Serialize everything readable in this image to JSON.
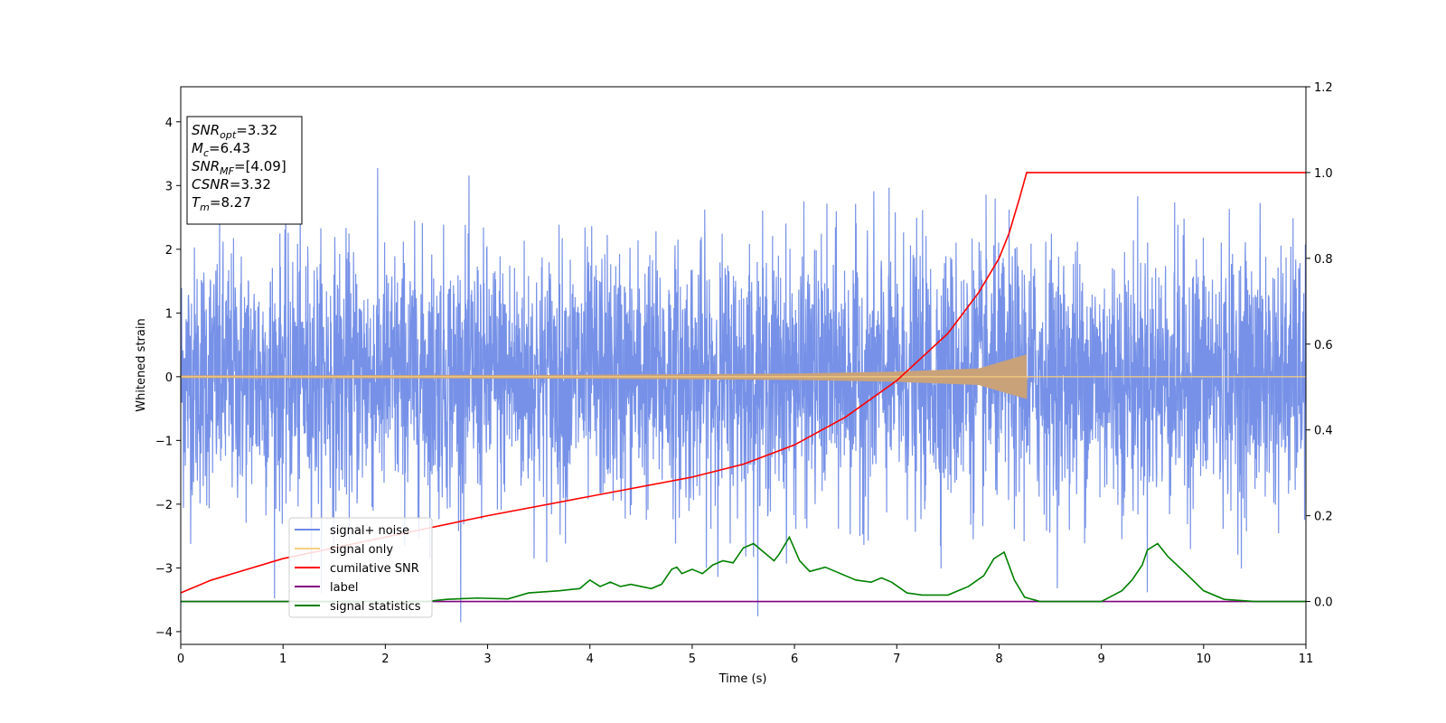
{
  "chart_data": {
    "type": "line",
    "xlabel": "Time (s)",
    "ylabel": "Whitened strain",
    "xlim": [
      0,
      11
    ],
    "ylim_left": [
      -4.2,
      4.55
    ],
    "ylim_right": [
      -0.1,
      1.2
    ],
    "x_ticks": [
      0,
      1,
      2,
      3,
      4,
      5,
      6,
      7,
      8,
      9,
      10,
      11
    ],
    "y_ticks_left": [
      4,
      3,
      2,
      1,
      0,
      -1,
      -2,
      -3,
      -4
    ],
    "y_ticks_left_labels": [
      "4",
      "3",
      "2",
      "1",
      "0",
      "−1",
      "−2",
      "−3",
      "−4"
    ],
    "y_ticks_right": [
      1.2,
      1.0,
      0.8,
      0.6,
      0.4,
      0.2,
      0.0
    ],
    "y_ticks_right_labels": [
      "1.2",
      "1.0",
      "0.8",
      "0.6",
      "0.4",
      "0.2",
      "0.0"
    ],
    "info_box": {
      "lines": [
        {
          "var": "SNR",
          "sub": "opt",
          "value": "=3.32"
        },
        {
          "var": "M",
          "sub": "c",
          "value": "=6.43"
        },
        {
          "var": "SNR",
          "sub": "MF",
          "value": "=[4.09]"
        },
        {
          "var": "CSNR",
          "sub": "",
          "value": "=3.32"
        },
        {
          "var": "T",
          "sub": "m",
          "value": "=8.27"
        }
      ]
    },
    "legend": {
      "position": "lower-left",
      "entries": [
        {
          "label": "signal+ noise",
          "color": "#6f8be6"
        },
        {
          "label": "signal only",
          "color": "#f5cf80"
        },
        {
          "label": "cumilative SNR",
          "color": "#ff0000"
        },
        {
          "label": "label",
          "color": "#800080"
        },
        {
          "label": "signal statistics",
          "color": "#008000"
        }
      ]
    },
    "series": [
      {
        "name": "signal+ noise",
        "axis": "left",
        "color": "#6f8be6",
        "kind": "noise",
        "band": [
          -2.0,
          2.0
        ],
        "peak_range": [
          -3.85,
          4.13
        ],
        "x": [
          0,
          11
        ]
      },
      {
        "name": "signal only",
        "axis": "left",
        "color": "#c9a27a",
        "kind": "chirp",
        "merger_time": 8.27,
        "envelope": [
          {
            "x": 0,
            "y": 0.02
          },
          {
            "x": 4,
            "y": 0.03
          },
          {
            "x": 6,
            "y": 0.05
          },
          {
            "x": 7,
            "y": 0.08
          },
          {
            "x": 7.8,
            "y": 0.13
          },
          {
            "x": 8.27,
            "y": 0.35
          }
        ]
      },
      {
        "name": "cumilative SNR",
        "axis": "right",
        "color": "#ff0000",
        "x": [
          0,
          0.3,
          1,
          2,
          3,
          4,
          5,
          5.5,
          6,
          6.5,
          7,
          7.5,
          7.8,
          8.0,
          8.1,
          8.2,
          8.27,
          11
        ],
        "y": [
          0.02,
          0.05,
          0.1,
          0.15,
          0.2,
          0.245,
          0.29,
          0.32,
          0.365,
          0.43,
          0.515,
          0.625,
          0.72,
          0.8,
          0.86,
          0.94,
          1.0,
          1.0
        ]
      },
      {
        "name": "label",
        "axis": "right",
        "color": "#800080",
        "x": [
          0,
          11
        ],
        "y": [
          0.0,
          0.0
        ]
      },
      {
        "name": "signal statistics",
        "axis": "right",
        "color": "#008000",
        "x": [
          0,
          2.4,
          2.6,
          2.9,
          3.2,
          3.4,
          3.7,
          3.9,
          4.0,
          4.1,
          4.2,
          4.3,
          4.4,
          4.5,
          4.6,
          4.7,
          4.8,
          4.85,
          4.9,
          5.0,
          5.1,
          5.2,
          5.3,
          5.4,
          5.5,
          5.6,
          5.7,
          5.8,
          5.85,
          5.95,
          6.05,
          6.15,
          6.3,
          6.4,
          6.5,
          6.6,
          6.75,
          6.85,
          6.95,
          7.1,
          7.25,
          7.5,
          7.7,
          7.85,
          7.95,
          8.05,
          8.15,
          8.25,
          8.4,
          8.7,
          9.0,
          9.2,
          9.3,
          9.4,
          9.45,
          9.55,
          9.65,
          9.85,
          10.0,
          10.2,
          10.5,
          11
        ],
        "y": [
          0.0,
          0.0,
          0.005,
          0.008,
          0.006,
          0.02,
          0.025,
          0.03,
          0.05,
          0.035,
          0.045,
          0.035,
          0.04,
          0.035,
          0.03,
          0.04,
          0.075,
          0.08,
          0.065,
          0.075,
          0.065,
          0.085,
          0.095,
          0.09,
          0.125,
          0.135,
          0.115,
          0.095,
          0.11,
          0.15,
          0.095,
          0.07,
          0.08,
          0.07,
          0.06,
          0.05,
          0.045,
          0.055,
          0.045,
          0.02,
          0.015,
          0.015,
          0.035,
          0.06,
          0.1,
          0.115,
          0.05,
          0.01,
          0.0,
          0.0,
          0.0,
          0.025,
          0.05,
          0.085,
          0.12,
          0.135,
          0.105,
          0.06,
          0.025,
          0.005,
          0.0,
          0.0
        ]
      }
    ]
  }
}
